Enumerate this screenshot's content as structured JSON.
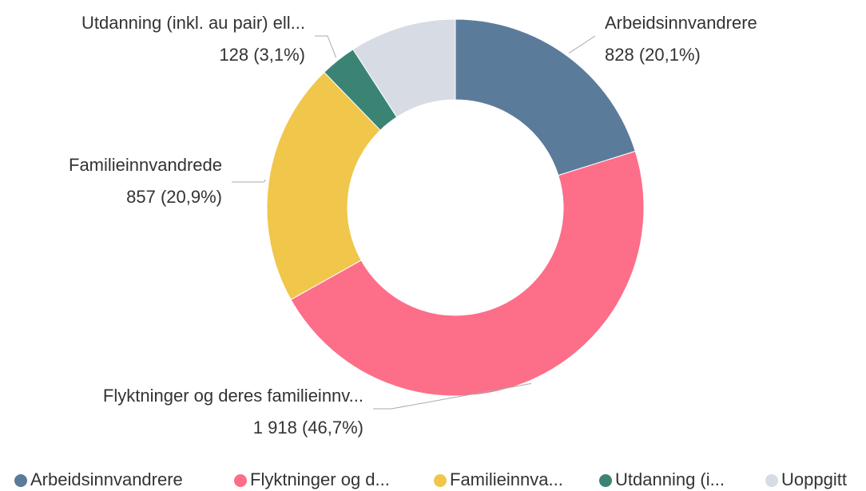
{
  "chart_data": {
    "type": "donut",
    "categories": [
      "Arbeidsinnvandrere",
      "Flyktninger og d...",
      "Familieinnva...",
      "Utdanning (i...",
      "Uoppgitt"
    ],
    "slice_labels": [
      "Arbeidsinnvandrere",
      "Flyktninger og deres familieinnv...",
      "Familieinnvandrede",
      "Utdanning (inkl. au pair) ell...",
      null
    ],
    "values": [
      828,
      1918,
      857,
      128,
      375
    ],
    "value_labels": [
      "828 (20,1%)",
      "1 918 (46,7%)",
      "857 (20,9%)",
      "128 (3,1%)",
      null
    ],
    "colors": [
      "#5b7b9b",
      "#fd6e88",
      "#f0c64b",
      "#3b8474",
      "#d6dbe4"
    ],
    "legend": "bottom"
  }
}
